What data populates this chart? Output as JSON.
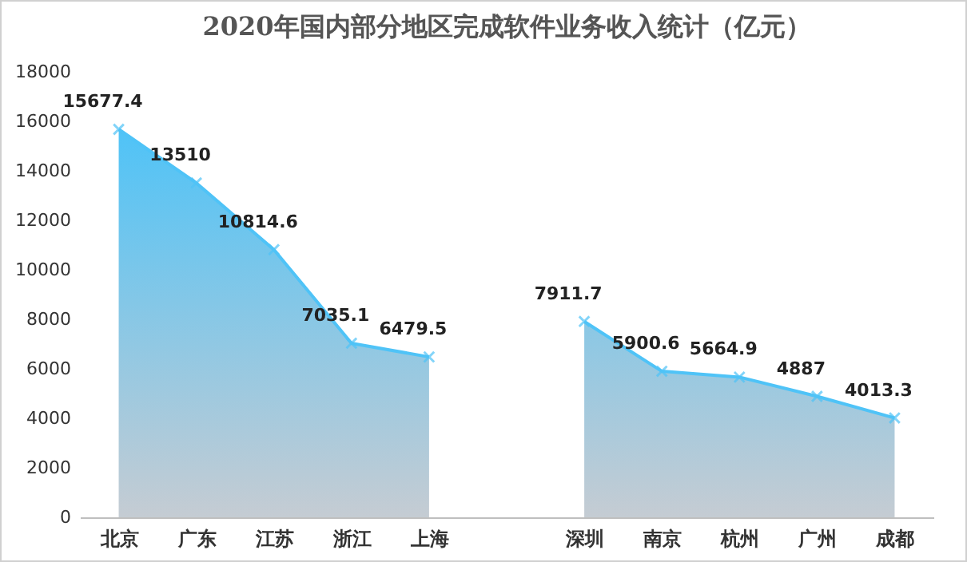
{
  "chart_data": {
    "type": "area",
    "title": "2020年国内部分地区完成软件业务收入统计（亿元）",
    "categories": [
      "北京",
      "广东",
      "江苏",
      "浙江",
      "上海",
      null,
      "深圳",
      "南京",
      "杭州",
      "广州",
      "成都"
    ],
    "series": [
      {
        "color": "#4fc3f7",
        "values": [
          15677.4,
          13510,
          10814.6,
          7035.1,
          6479.5,
          null,
          7911.7,
          5900.6,
          5664.9,
          4887,
          4013.3
        ]
      }
    ],
    "ylim": [
      0,
      18000
    ],
    "yticks": [
      0,
      2000,
      4000,
      6000,
      8000,
      10000,
      12000,
      14000,
      16000,
      18000
    ],
    "grid": false,
    "marker": "cross",
    "data_labels": true
  }
}
